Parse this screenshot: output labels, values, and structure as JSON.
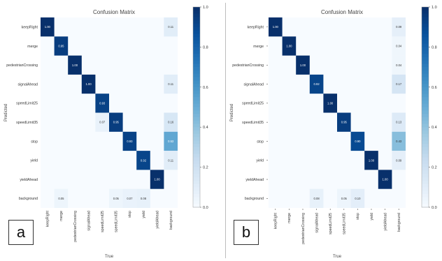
{
  "chart_data": [
    {
      "type": "heatmap",
      "panel_label": "a",
      "title": "Confusion Matrix",
      "xlabel": "True",
      "ylabel": "Predicted",
      "x_categories": [
        "keepRight",
        "merge",
        "pedestrianCrossing",
        "signalAhead",
        "speedLimit25",
        "speedLimit35",
        "stop",
        "yield",
        "yieldAhead",
        "background"
      ],
      "y_categories": [
        "keepRight",
        "merge",
        "pedestrianCrossing",
        "signalAhead",
        "speedLimit25",
        "speedLimit35",
        "stop",
        "yield",
        "yieldAhead",
        "background"
      ],
      "colorbar_ticks": [
        "0.0",
        "0.2",
        "0.4",
        "0.6",
        "0.8",
        "1.0"
      ],
      "vmin": 0.0,
      "vmax": 1.0,
      "cells": [
        {
          "row": 0,
          "col": 0,
          "value": 1.0,
          "label": "1.00"
        },
        {
          "row": 0,
          "col": 9,
          "value": 0.11,
          "label": "0.11"
        },
        {
          "row": 1,
          "col": 1,
          "value": 0.95,
          "label": "0.95"
        },
        {
          "row": 2,
          "col": 2,
          "value": 1.0,
          "label": "1.00"
        },
        {
          "row": 3,
          "col": 3,
          "value": 1.0,
          "label": "1.00"
        },
        {
          "row": 3,
          "col": 9,
          "value": 0.11,
          "label": "0.11"
        },
        {
          "row": 4,
          "col": 4,
          "value": 0.93,
          "label": "0.93"
        },
        {
          "row": 5,
          "col": 4,
          "value": 0.07,
          "label": "0.07"
        },
        {
          "row": 5,
          "col": 5,
          "value": 0.95,
          "label": "0.95"
        },
        {
          "row": 5,
          "col": 9,
          "value": 0.16,
          "label": "0.16"
        },
        {
          "row": 6,
          "col": 6,
          "value": 0.93,
          "label": "0.93"
        },
        {
          "row": 6,
          "col": 9,
          "value": 0.53,
          "label": "0.53"
        },
        {
          "row": 7,
          "col": 7,
          "value": 0.92,
          "label": "0.92"
        },
        {
          "row": 7,
          "col": 9,
          "value": 0.11,
          "label": "0.11"
        },
        {
          "row": 8,
          "col": 8,
          "value": 1.0,
          "label": "1.00"
        },
        {
          "row": 9,
          "col": 1,
          "value": 0.05,
          "label": "0.05"
        },
        {
          "row": 9,
          "col": 5,
          "value": 0.05,
          "label": "0.05"
        },
        {
          "row": 9,
          "col": 6,
          "value": 0.07,
          "label": "0.07"
        },
        {
          "row": 9,
          "col": 7,
          "value": 0.08,
          "label": "0.08"
        }
      ]
    },
    {
      "type": "heatmap",
      "panel_label": "b",
      "title": "Confusion Matrix",
      "xlabel": "True",
      "ylabel": "Predicted",
      "x_categories": [
        "keepRight",
        "merge",
        "pedestrianCrossing",
        "signalAhead",
        "speedLimit25",
        "speedLimit35",
        "stop",
        "yield",
        "yieldAhead",
        "background"
      ],
      "y_categories": [
        "keepRight",
        "merge",
        "pedestrianCrossing",
        "signalAhead",
        "speedLimit25",
        "speedLimit35",
        "stop",
        "yield",
        "yieldAhead",
        "background"
      ],
      "colorbar_ticks": [
        "0.0",
        "0.2",
        "0.4",
        "0.6",
        "0.8",
        "1.0"
      ],
      "vmin": 0.0,
      "vmax": 1.0,
      "cells": [
        {
          "row": 0,
          "col": 0,
          "value": 1.0,
          "label": "1.00"
        },
        {
          "row": 0,
          "col": 9,
          "value": 0.09,
          "label": "0.09"
        },
        {
          "row": 1,
          "col": 1,
          "value": 1.0,
          "label": "1.00"
        },
        {
          "row": 1,
          "col": 9,
          "value": 0.04,
          "label": "0.04"
        },
        {
          "row": 2,
          "col": 2,
          "value": 1.0,
          "label": "1.00"
        },
        {
          "row": 2,
          "col": 9,
          "value": 0.04,
          "label": "0.04"
        },
        {
          "row": 3,
          "col": 3,
          "value": 0.92,
          "label": "0.92"
        },
        {
          "row": 3,
          "col": 9,
          "value": 0.17,
          "label": "0.17"
        },
        {
          "row": 4,
          "col": 4,
          "value": 1.0,
          "label": "1.00"
        },
        {
          "row": 5,
          "col": 5,
          "value": 0.95,
          "label": "0.95"
        },
        {
          "row": 5,
          "col": 9,
          "value": 0.13,
          "label": "0.13"
        },
        {
          "row": 6,
          "col": 6,
          "value": 0.9,
          "label": "0.90"
        },
        {
          "row": 6,
          "col": 9,
          "value": 0.43,
          "label": "0.43"
        },
        {
          "row": 7,
          "col": 7,
          "value": 1.0,
          "label": "1.00"
        },
        {
          "row": 7,
          "col": 9,
          "value": 0.09,
          "label": "0.09"
        },
        {
          "row": 8,
          "col": 8,
          "value": 1.0,
          "label": "1.00"
        },
        {
          "row": 9,
          "col": 3,
          "value": 0.08,
          "label": "0.08"
        },
        {
          "row": 9,
          "col": 5,
          "value": 0.05,
          "label": "0.05"
        },
        {
          "row": 9,
          "col": 6,
          "value": 0.1,
          "label": "0.10"
        }
      ]
    }
  ]
}
